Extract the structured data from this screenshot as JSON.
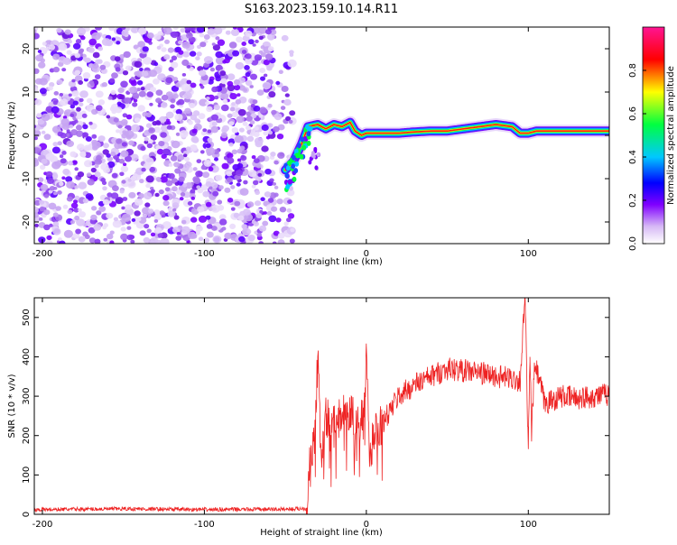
{
  "title": "S163.2023.159.10.14.R11",
  "chart_data": [
    {
      "type": "heatmap",
      "xlabel": "Height of straight line (km)",
      "ylabel": "Frequency (Hz)",
      "xlim": [
        -205,
        150
      ],
      "ylim": [
        -25,
        25
      ],
      "xticks": [
        -200,
        -100,
        0,
        100
      ],
      "yticks": [
        20,
        10,
        0,
        -10,
        -20
      ],
      "noise_region_x": [
        -205,
        -50
      ],
      "signal_ridge": {
        "x": [
          -50,
          -45,
          -40,
          -36,
          -30,
          -25,
          -20,
          -15,
          -10,
          -7,
          -3,
          0,
          10,
          20,
          30,
          40,
          50,
          60,
          70,
          80,
          90,
          95,
          100,
          105,
          110,
          120,
          130,
          140,
          150
        ],
        "freq": [
          -8,
          -6,
          -2,
          2,
          2.5,
          1.5,
          2.5,
          2,
          3,
          1,
          0,
          0.5,
          0.5,
          0.5,
          0.8,
          1,
          1,
          1.5,
          2,
          2.5,
          2,
          0.5,
          0.5,
          1,
          1,
          1,
          1,
          1,
          1
        ]
      },
      "colorbar": {
        "label": "Normalized spectral amplitude",
        "range": [
          0,
          1
        ],
        "ticks": [
          0.0,
          0.2,
          0.4,
          0.6,
          0.8
        ],
        "colors": [
          "#ffffff",
          "#c9a8f0",
          "#7a00ff",
          "#0000ff",
          "#00c8ff",
          "#00ff40",
          "#ffff00",
          "#ff0000",
          "#ff1493"
        ]
      }
    },
    {
      "type": "line",
      "xlabel": "Height of straight line (km)",
      "ylabel": "SNR (10 * v/v)",
      "xlim": [
        -205,
        150
      ],
      "ylim": [
        0,
        550
      ],
      "xticks": [
        -200,
        -100,
        0,
        100
      ],
      "yticks": [
        0,
        100,
        200,
        300,
        400,
        500
      ],
      "series_color": "#ee2222",
      "series": [
        {
          "x": [
            -205,
            -150,
            -100,
            -50,
            -37,
            -35,
            -32,
            -30,
            -28,
            -25,
            -20,
            -15,
            -10,
            -5,
            -2,
            0,
            2,
            5,
            10,
            20,
            30,
            40,
            50,
            60,
            70,
            80,
            90,
            95,
            98,
            100,
            101,
            102,
            104,
            108,
            110,
            120,
            130,
            140,
            150
          ],
          "y": [
            12,
            14,
            12,
            13,
            15,
            120,
            180,
            400,
            150,
            250,
            220,
            260,
            250,
            230,
            240,
            430,
            120,
            220,
            230,
            300,
            330,
            350,
            370,
            365,
            360,
            350,
            345,
            340,
            560,
            150,
            400,
            210,
            380,
            320,
            280,
            300,
            295,
            300,
            305
          ]
        }
      ]
    }
  ]
}
